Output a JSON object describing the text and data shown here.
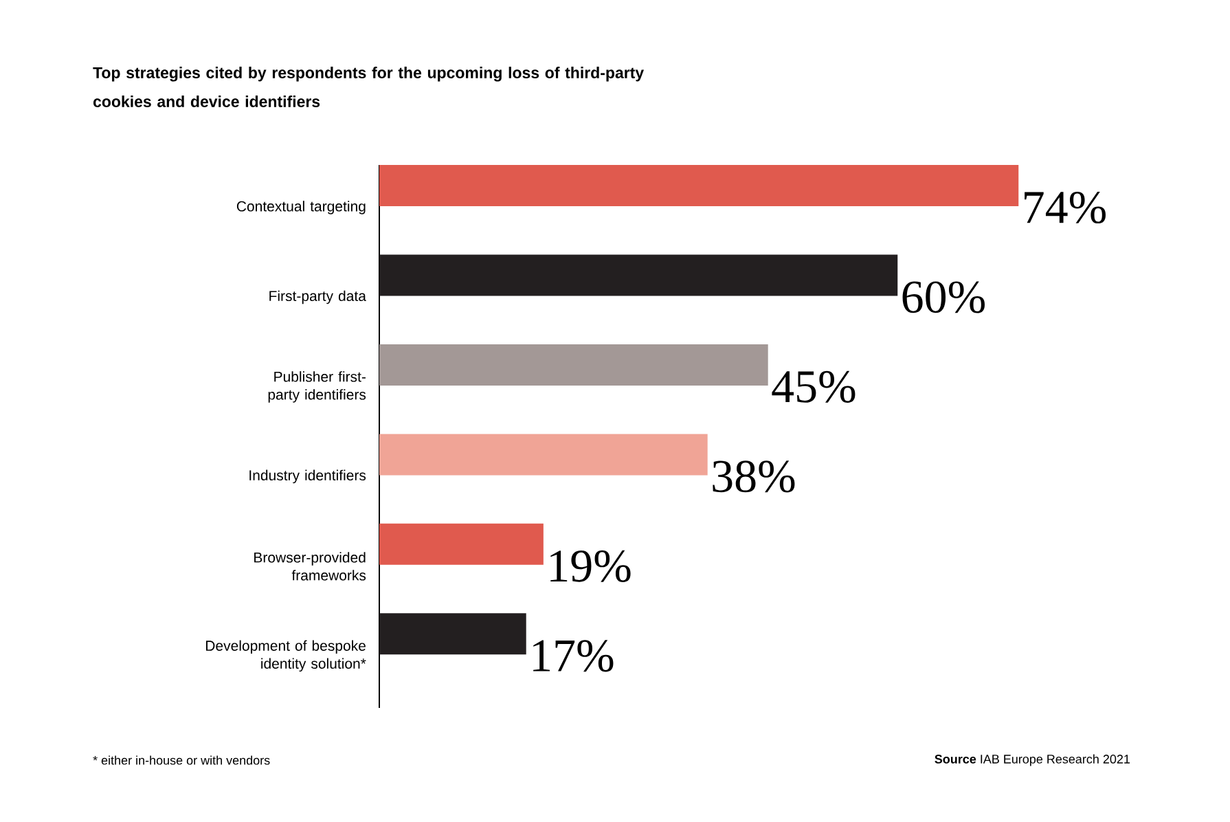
{
  "chart_data": {
    "type": "bar",
    "orientation": "horizontal",
    "title": "Top strategies cited by respondents for the upcoming loss of third-party cookies and device identifiers",
    "categories": [
      "Contextual targeting",
      "First-party data",
      "Publisher first-party identifiers",
      "Industry identifiers",
      "Browser-provided frameworks",
      "Development of bespoke identity solution*"
    ],
    "values": [
      74,
      60,
      45,
      38,
      19,
      17
    ],
    "colors": [
      "#e05a4e",
      "#231f20",
      "#a39896",
      "#f0a496",
      "#e05a4e",
      "#231f20"
    ],
    "value_labels": [
      "74%",
      "60%",
      "45%",
      "38%",
      "19%",
      "17%"
    ],
    "annotations": [
      "* either in-house or with vendors",
      "**Source** IAB Europe Research 2021"
    ]
  }
}
